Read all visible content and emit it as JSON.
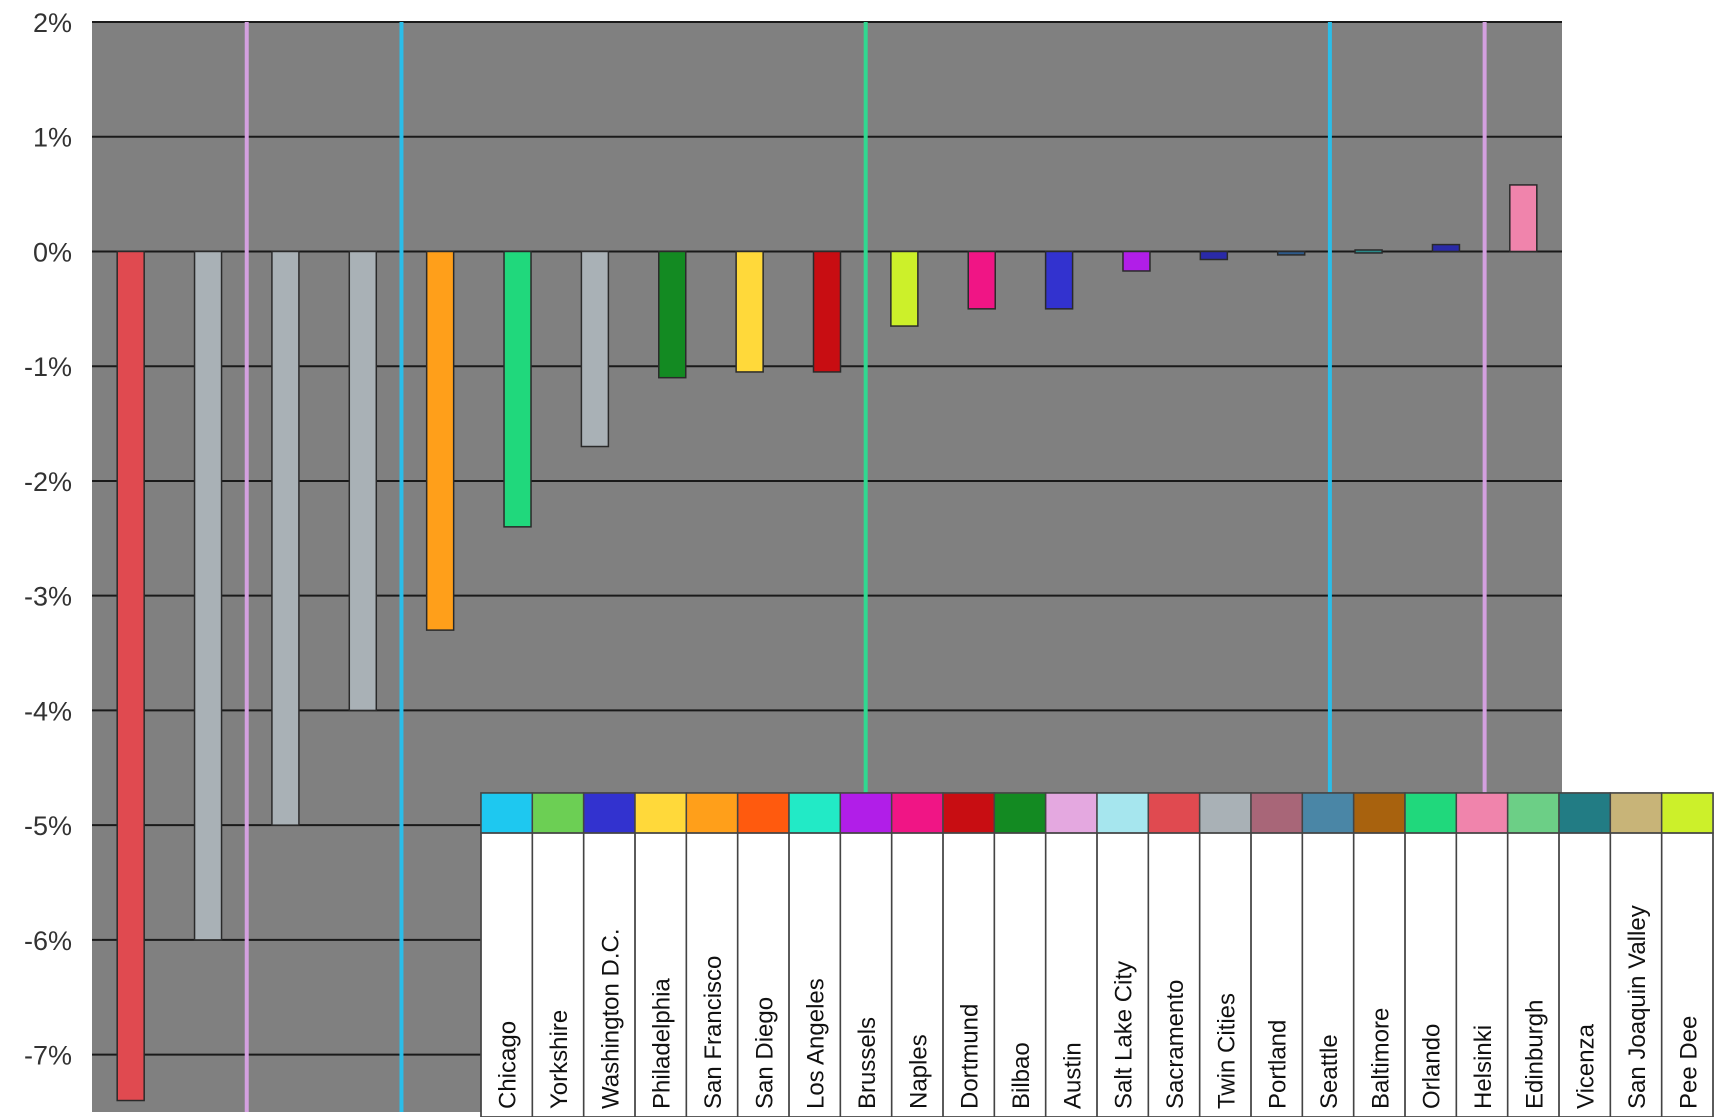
{
  "chart_data": {
    "type": "bar",
    "title": "",
    "xlabel": "",
    "ylabel": "",
    "ylim": [
      -7.5,
      2
    ],
    "y_ticks": [
      "2%",
      "1%",
      "0%",
      "-1%",
      "-2%",
      "-3%",
      "-4%",
      "-5%",
      "-6%",
      "-7%"
    ],
    "y_tick_values": [
      2,
      1,
      0,
      -1,
      -2,
      -3,
      -4,
      -5,
      -6,
      -7
    ],
    "grid": true,
    "plot_background": "#808080",
    "legend_position": "bottom-right",
    "bars": [
      {
        "value": -7.4,
        "color": "#e04a50"
      },
      {
        "value": -6.0,
        "color": "#a9b1b6"
      },
      {
        "value": -5.0,
        "color": "#a9b1b6"
      },
      {
        "value": -4.0,
        "color": "#a9b1b6"
      },
      {
        "value": -3.3,
        "color": "#ff9f1a"
      },
      {
        "value": -2.4,
        "color": "#20d87c"
      },
      {
        "value": -1.7,
        "color": "#a9b1b6"
      },
      {
        "value": -1.1,
        "color": "#138a22"
      },
      {
        "value": -1.05,
        "color": "#ffd93a"
      },
      {
        "value": -1.05,
        "color": "#c80d12"
      },
      {
        "value": -0.65,
        "color": "#ccf02a"
      },
      {
        "value": -0.5,
        "color": "#f01585"
      },
      {
        "value": -0.5,
        "color": "#3232cf"
      },
      {
        "value": -0.17,
        "color": "#b11ee8"
      },
      {
        "value": -0.07,
        "color": "#2a2aa8"
      },
      {
        "value": -0.03,
        "color": "#2e5a8a"
      },
      {
        "value": 0.0,
        "color": "#2a8a8a"
      },
      {
        "value": 0.06,
        "color": "#2a2aa8"
      },
      {
        "value": 0.58,
        "color": "#f084ac"
      }
    ],
    "vertical_lines": [
      {
        "after_bar": 1,
        "color": "#d4a0e0"
      },
      {
        "after_bar": 3,
        "color": "#2bbde8"
      },
      {
        "after_bar": 9,
        "color": "#30d890"
      },
      {
        "after_bar": 15,
        "color": "#2bbde8"
      },
      {
        "after_bar": 17,
        "color": "#d4a0e0"
      }
    ],
    "legend": [
      {
        "name": "Chicago",
        "color": "#1ec8f0"
      },
      {
        "name": "Yorkshire",
        "color": "#6ccf54"
      },
      {
        "name": "Washington D.C.",
        "color": "#3232cf"
      },
      {
        "name": "Philadelphia",
        "color": "#ffd93a"
      },
      {
        "name": "San Francisco",
        "color": "#ff9f1a"
      },
      {
        "name": "San Diego",
        "color": "#ff5a0e"
      },
      {
        "name": "Los Angeles",
        "color": "#22eac6"
      },
      {
        "name": "Brussels",
        "color": "#b11ee8"
      },
      {
        "name": "Naples",
        "color": "#f01585"
      },
      {
        "name": "Dortmund",
        "color": "#c80d12"
      },
      {
        "name": "Bilbao",
        "color": "#138a22"
      },
      {
        "name": "Austin",
        "color": "#e4a8e0"
      },
      {
        "name": "Salt Lake City",
        "color": "#a6e6ee"
      },
      {
        "name": "Sacramento",
        "color": "#e04a50"
      },
      {
        "name": "Twin Cities",
        "color": "#a9b1b6"
      },
      {
        "name": "Portland",
        "color": "#a86678"
      },
      {
        "name": "Seattle",
        "color": "#4a86a6"
      },
      {
        "name": "Baltimore",
        "color": "#a8620e"
      },
      {
        "name": "Orlando",
        "color": "#20d87c"
      },
      {
        "name": "Helsinki",
        "color": "#f084ac"
      },
      {
        "name": "Edinburgh",
        "color": "#6ccf86"
      },
      {
        "name": "Vicenza",
        "color": "#227c84"
      },
      {
        "name": "San Joaquin Valley",
        "color": "#c8b478"
      },
      {
        "name": "Pee Dee",
        "color": "#ccf02a"
      }
    ]
  }
}
